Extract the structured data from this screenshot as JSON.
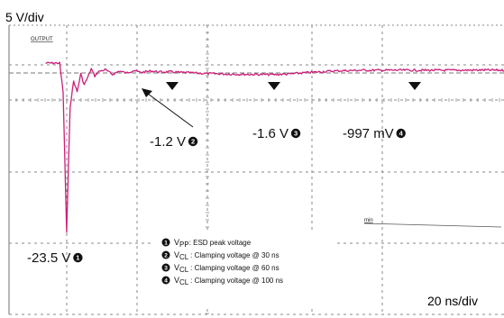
{
  "scope": {
    "volt_div": "5 V/div",
    "time_div": "20 ns/div",
    "channel_tag": "OUTPUT",
    "ref_tag": "min",
    "trace_color": "#cc1f7a",
    "grid_color": "#8a8a8a"
  },
  "chart_data": {
    "type": "line",
    "xlabel": "",
    "ylabel": "",
    "x_unit": "ns",
    "y_unit": "V",
    "xlim": [
      -5,
      135
    ],
    "ylim": [
      -38,
      0.5
    ],
    "grid": true,
    "series": [
      {
        "x": [
          -5,
          -1,
          0,
          1,
          2,
          3,
          4,
          5,
          6,
          7,
          8,
          9,
          10,
          12,
          14,
          16,
          18,
          20,
          22,
          25,
          28,
          30,
          33,
          36,
          40,
          45,
          50,
          55,
          60,
          65,
          70,
          75,
          80,
          85,
          90,
          95,
          100,
          110,
          120,
          130,
          135
        ],
        "y": [
          0,
          0,
          -4,
          -23.5,
          -6,
          -2.5,
          -4,
          -1.5,
          -3,
          -2,
          -0.8,
          -1.8,
          -1.2,
          -0.9,
          -1.6,
          -1.1,
          -1.4,
          -1.0,
          -1.3,
          -1.1,
          -1.25,
          -1.2,
          -1.3,
          -1.35,
          -1.45,
          -1.5,
          -1.55,
          -1.58,
          -1.6,
          -1.5,
          -1.3,
          -1.15,
          -1.05,
          -1.0,
          -1.0,
          -0.99,
          -0.997,
          -1.0,
          -0.98,
          -1.0,
          -1.0
        ]
      }
    ],
    "markers": [
      {
        "id": "1",
        "x": 1,
        "y": -23.5,
        "label": "-23.5 V"
      },
      {
        "id": "2",
        "x": 30,
        "y": -1.2,
        "label": "-1.2 V"
      },
      {
        "id": "3",
        "x": 60,
        "y": -1.6,
        "label": "-1.6 V"
      },
      {
        "id": "4",
        "x": 100,
        "y": -0.997,
        "label": "-997 mV"
      }
    ]
  },
  "legend": [
    {
      "id": "1",
      "sym": "V",
      "sub": "PP",
      "text": ": ESD peak voltage"
    },
    {
      "id": "2",
      "sym": "V",
      "sub": "CL",
      "text": " : Clamping voltage @ 30 ns"
    },
    {
      "id": "3",
      "sym": "V",
      "sub": "CL",
      "text": " : Clamping voltage @ 60 ns"
    },
    {
      "id": "4",
      "sym": "V",
      "sub": "CL",
      "text": " : Clamping voltage @ 100 ns"
    }
  ]
}
